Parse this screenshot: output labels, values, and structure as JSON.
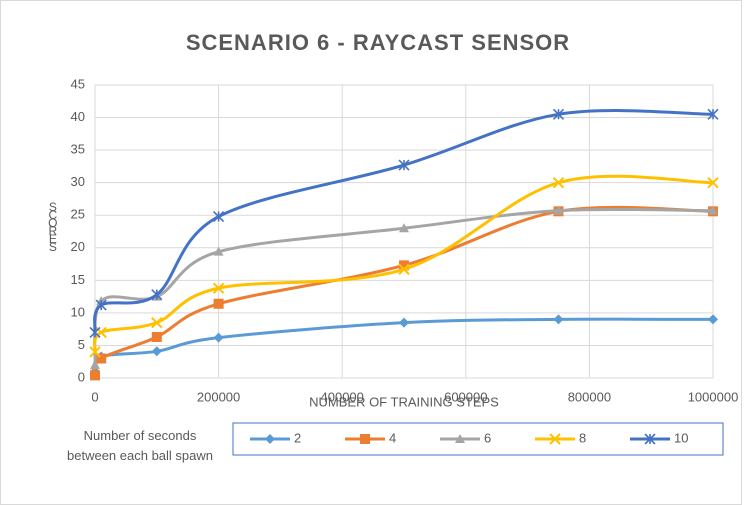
{
  "chart_data": {
    "type": "line",
    "smooth": true,
    "title": "SCENARIO 6 - RAYCAST SENSOR",
    "x_label": "NUMBER OF TRAINING STEPS",
    "y_label": "SCORES",
    "legend_title": "Number of seconds between each ball spawn",
    "legend_position": "bottom",
    "grid": true,
    "x": [
      0,
      10000,
      100000,
      200000,
      500000,
      750000,
      1000000
    ],
    "xlim": [
      0,
      1000000
    ],
    "xticks": [
      0,
      200000,
      400000,
      600000,
      800000,
      1000000
    ],
    "ylim": [
      0,
      45
    ],
    "yticks": [
      0,
      5,
      10,
      15,
      20,
      25,
      30,
      35,
      40,
      45
    ],
    "series": [
      {
        "name": "2",
        "color": "#5b9bd5",
        "marker": "diamond",
        "values": [
          1,
          3.3,
          4.1,
          6.2,
          8.5,
          9,
          9
        ]
      },
      {
        "name": "4",
        "color": "#ed7d31",
        "marker": "square",
        "values": [
          0.4,
          3,
          6.3,
          11.4,
          17.3,
          25.6,
          25.6
        ]
      },
      {
        "name": "6",
        "color": "#a5a5a5",
        "marker": "triangle",
        "values": [
          2,
          11.8,
          12.5,
          19.4,
          23,
          25.7,
          25.7
        ]
      },
      {
        "name": "8",
        "color": "#ffc000",
        "marker": "x",
        "values": [
          4,
          7,
          8.5,
          13.8,
          16.7,
          30,
          30
        ]
      },
      {
        "name": "10",
        "color": "#4472c4",
        "marker": "star",
        "values": [
          7,
          11.2,
          12.8,
          24.8,
          32.7,
          40.5,
          40.5
        ]
      }
    ]
  }
}
